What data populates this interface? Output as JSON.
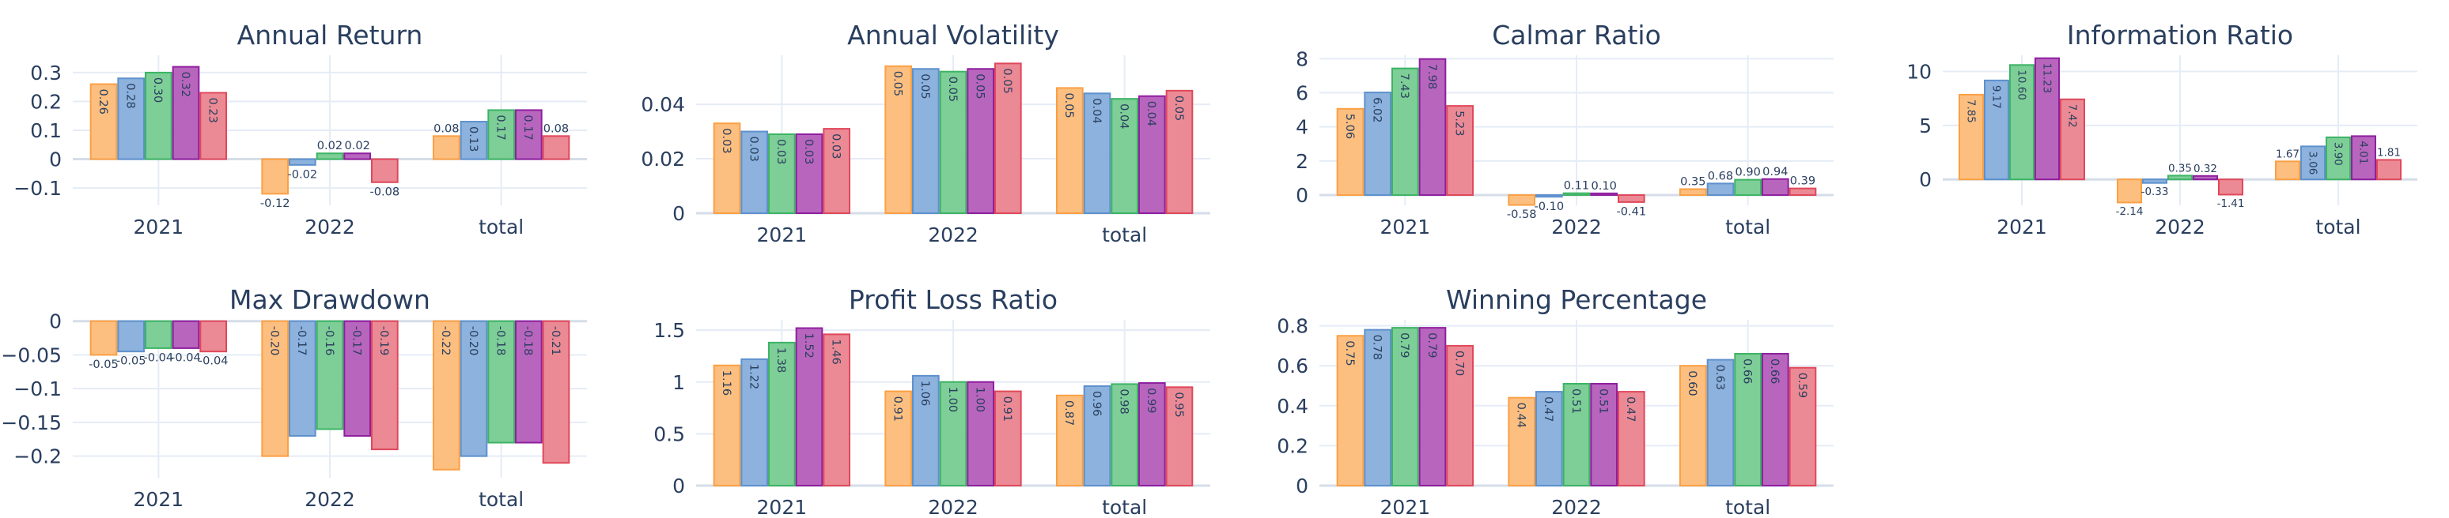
{
  "chart_data": [
    {
      "type": "bar",
      "title": "Annual Return",
      "categories": [
        "2021",
        "2022",
        "total"
      ],
      "ylim": [
        -0.16,
        0.36
      ],
      "yticks": [
        -0.1,
        0,
        0.1,
        0.2,
        0.3
      ],
      "ytick_labels": [
        "−0.1",
        "0",
        "0.1",
        "0.2",
        "0.3"
      ],
      "series": [
        {
          "values": [
            0.26,
            -0.12,
            0.08
          ],
          "labels": [
            "0.26",
            "-0.12",
            "0.08"
          ]
        },
        {
          "values": [
            0.28,
            -0.02,
            0.13
          ],
          "labels": [
            "0.28",
            "-0.02",
            "0.13"
          ]
        },
        {
          "values": [
            0.3,
            0.02,
            0.17
          ],
          "labels": [
            "0.30",
            "0.02",
            "0.17"
          ]
        },
        {
          "values": [
            0.32,
            0.02,
            0.17
          ],
          "labels": [
            "0.32",
            "0.02",
            "0.17"
          ]
        },
        {
          "values": [
            0.23,
            -0.08,
            0.08
          ],
          "labels": [
            "0.23",
            "-0.08",
            "0.08"
          ]
        }
      ]
    },
    {
      "type": "bar",
      "title": "Annual Volatility",
      "categories": [
        "2021",
        "2022",
        "total"
      ],
      "ylim": [
        0,
        0.058
      ],
      "yticks": [
        0,
        0.02,
        0.04
      ],
      "ytick_labels": [
        "0",
        "0.02",
        "0.04"
      ],
      "series": [
        {
          "values": [
            0.033,
            0.054,
            0.046
          ],
          "labels": [
            "0.03",
            "0.05",
            "0.05"
          ]
        },
        {
          "values": [
            0.03,
            0.053,
            0.044
          ],
          "labels": [
            "0.03",
            "0.05",
            "0.04"
          ]
        },
        {
          "values": [
            0.029,
            0.052,
            0.042
          ],
          "labels": [
            "0.03",
            "0.05",
            "0.04"
          ]
        },
        {
          "values": [
            0.029,
            0.053,
            0.043
          ],
          "labels": [
            "0.03",
            "0.05",
            "0.04"
          ]
        },
        {
          "values": [
            0.031,
            0.055,
            0.045
          ],
          "labels": [
            "0.03",
            "0.05",
            "0.05"
          ]
        }
      ]
    },
    {
      "type": "bar",
      "title": "Calmar Ratio",
      "categories": [
        "2021",
        "2022",
        "total"
      ],
      "ylim": [
        -0.6,
        8.2
      ],
      "yticks": [
        0,
        2,
        4,
        6,
        8
      ],
      "ytick_labels": [
        "0",
        "2",
        "4",
        "6",
        "8"
      ],
      "series": [
        {
          "values": [
            5.06,
            -0.58,
            0.35
          ],
          "labels": [
            "5.06",
            "-0.58",
            "0.35"
          ]
        },
        {
          "values": [
            6.02,
            -0.1,
            0.68
          ],
          "labels": [
            "6.02",
            "-0.10",
            "0.68"
          ]
        },
        {
          "values": [
            7.43,
            0.11,
            0.9
          ],
          "labels": [
            "7.43",
            "0.11",
            "0.90"
          ]
        },
        {
          "values": [
            7.98,
            0.1,
            0.94
          ],
          "labels": [
            "7.98",
            "0.10",
            "0.94"
          ]
        },
        {
          "values": [
            5.23,
            -0.41,
            0.39
          ],
          "labels": [
            "5.23",
            "-0.41",
            "0.39"
          ]
        }
      ]
    },
    {
      "type": "bar",
      "title": "Information Ratio",
      "categories": [
        "2021",
        "2022",
        "total"
      ],
      "ylim": [
        -2.4,
        11.5
      ],
      "yticks": [
        0,
        5,
        10
      ],
      "ytick_labels": [
        "0",
        "5",
        "10"
      ],
      "series": [
        {
          "values": [
            7.85,
            -2.14,
            1.67
          ],
          "labels": [
            "7.85",
            "-2.14",
            "1.67"
          ]
        },
        {
          "values": [
            9.17,
            -0.33,
            3.06
          ],
          "labels": [
            "9.17",
            "-0.33",
            "3.06"
          ]
        },
        {
          "values": [
            10.6,
            0.35,
            3.9
          ],
          "labels": [
            "10.60",
            "0.35",
            "3.90"
          ]
        },
        {
          "values": [
            11.23,
            0.32,
            4.01
          ],
          "labels": [
            "11.23",
            "0.32",
            "4.01"
          ]
        },
        {
          "values": [
            7.42,
            -1.41,
            1.81
          ],
          "labels": [
            "7.42",
            "-1.41",
            "1.81"
          ]
        }
      ]
    },
    {
      "type": "bar",
      "title": "Max Drawdown",
      "categories": [
        "2021",
        "2022",
        "total"
      ],
      "ylim": [
        -0.232,
        0.002
      ],
      "yticks": [
        -0.2,
        -0.15,
        -0.1,
        -0.05,
        0
      ],
      "ytick_labels": [
        "−0.2",
        "−0.15",
        "−0.1",
        "−0.05",
        "0"
      ],
      "series": [
        {
          "values": [
            -0.05,
            -0.2,
            -0.22
          ],
          "labels": [
            "-0.05",
            "-0.20",
            "-0.22"
          ]
        },
        {
          "values": [
            -0.045,
            -0.17,
            -0.2
          ],
          "labels": [
            "-0.05",
            "-0.17",
            "-0.20"
          ]
        },
        {
          "values": [
            -0.04,
            -0.16,
            -0.18
          ],
          "labels": [
            "-0.04",
            "-0.16",
            "-0.18"
          ]
        },
        {
          "values": [
            -0.04,
            -0.17,
            -0.18
          ],
          "labels": [
            "-0.04",
            "-0.17",
            "-0.18"
          ]
        },
        {
          "values": [
            -0.045,
            -0.19,
            -0.21
          ],
          "labels": [
            "-0.04",
            "-0.19",
            "-0.21"
          ]
        }
      ]
    },
    {
      "type": "bar",
      "title": "Profit Loss Ratio",
      "categories": [
        "2021",
        "2022",
        "total"
      ],
      "ylim": [
        0,
        1.6
      ],
      "yticks": [
        0,
        0.5,
        1,
        1.5
      ],
      "ytick_labels": [
        "0",
        "0.5",
        "1",
        "1.5"
      ],
      "series": [
        {
          "values": [
            1.16,
            0.91,
            0.87
          ],
          "labels": [
            "1.16",
            "0.91",
            "0.87"
          ]
        },
        {
          "values": [
            1.22,
            1.06,
            0.96
          ],
          "labels": [
            "1.22",
            "1.06",
            "0.96"
          ]
        },
        {
          "values": [
            1.38,
            1.0,
            0.98
          ],
          "labels": [
            "1.38",
            "1.00",
            "0.98"
          ]
        },
        {
          "values": [
            1.52,
            1.0,
            0.99
          ],
          "labels": [
            "1.52",
            "1.00",
            "0.99"
          ]
        },
        {
          "values": [
            1.46,
            0.91,
            0.95
          ],
          "labels": [
            "1.46",
            "0.91",
            "0.95"
          ]
        }
      ]
    },
    {
      "type": "bar",
      "title": "Winning Percentage",
      "categories": [
        "2021",
        "2022",
        "total"
      ],
      "ylim": [
        0,
        0.83
      ],
      "yticks": [
        0,
        0.2,
        0.4,
        0.6,
        0.8
      ],
      "ytick_labels": [
        "0",
        "0.2",
        "0.4",
        "0.6",
        "0.8"
      ],
      "series": [
        {
          "values": [
            0.75,
            0.44,
            0.6
          ],
          "labels": [
            "0.75",
            "0.44",
            "0.60"
          ]
        },
        {
          "values": [
            0.78,
            0.47,
            0.63
          ],
          "labels": [
            "0.78",
            "0.47",
            "0.63"
          ]
        },
        {
          "values": [
            0.79,
            0.51,
            0.66
          ],
          "labels": [
            "0.79",
            "0.51",
            "0.66"
          ]
        },
        {
          "values": [
            0.79,
            0.51,
            0.66
          ],
          "labels": [
            "0.79",
            "0.51",
            "0.66"
          ]
        },
        {
          "values": [
            0.7,
            0.47,
            0.59
          ],
          "labels": [
            "0.70",
            "0.47",
            "0.59"
          ]
        }
      ]
    }
  ],
  "colors": {
    "fills": [
      "#FDBF80",
      "#8CB2DD",
      "#7ECE97",
      "#B865BE",
      "#EB8A95"
    ],
    "borders": [
      "#FBA044",
      "#5E91CD",
      "#3CB464",
      "#8F1F9F",
      "#E0485A"
    ],
    "grid": "#E5ECF6",
    "text": "#2A3F5F"
  }
}
